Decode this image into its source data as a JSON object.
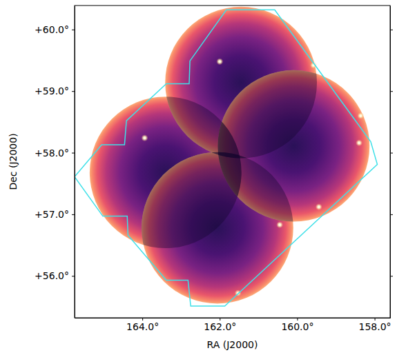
{
  "chart_data": {
    "type": "sky_map",
    "x_label": "RA (J2000)",
    "y_label": "Dec (J2000)",
    "xlim": [
      165.75,
      157.6
    ],
    "ylim": [
      55.32,
      60.39
    ],
    "xticks": [
      {
        "value": 164,
        "label": "164.0°"
      },
      {
        "value": 162,
        "label": "162.0°"
      },
      {
        "value": 160,
        "label": "160.0°"
      },
      {
        "value": 158,
        "label": "158.0°"
      }
    ],
    "yticks": [
      {
        "value": 56,
        "label": "+56.0°"
      },
      {
        "value": 57,
        "label": "+57.0°"
      },
      {
        "value": 58,
        "label": "+58.0°"
      },
      {
        "value": 59,
        "label": "+59.0°"
      },
      {
        "value": 60,
        "label": "+60.0°"
      }
    ],
    "fields": {
      "ra": [
        163.4,
        162.06,
        161.45,
        160.09
      ],
      "dec": [
        57.68,
        56.78,
        59.14,
        58.11
      ],
      "radius": [
        1.23,
        1.23,
        1.23,
        1.23
      ]
    },
    "footprint": {
      "color": "#3fe0e8",
      "ra": [
        165.75,
        165.05,
        164.46,
        164.41,
        163.38,
        162.79,
        162.77,
        161.83,
        160.58,
        158.1,
        157.93,
        161.87,
        162.75,
        162.82,
        163.38,
        164.37,
        164.39,
        165.02
      ],
      "dec": [
        57.61,
        58.13,
        58.13,
        58.52,
        59.12,
        59.12,
        59.49,
        60.32,
        60.32,
        58.18,
        57.81,
        55.51,
        55.51,
        55.93,
        55.93,
        56.66,
        56.97,
        56.97
      ]
    },
    "sources": {
      "ra": [
        162.0,
        163.94,
        159.58,
        158.36,
        158.4,
        159.44,
        160.45,
        161.53
      ],
      "dec": [
        59.48,
        58.24,
        59.42,
        58.6,
        58.16,
        57.12,
        56.83,
        55.72
      ]
    }
  }
}
